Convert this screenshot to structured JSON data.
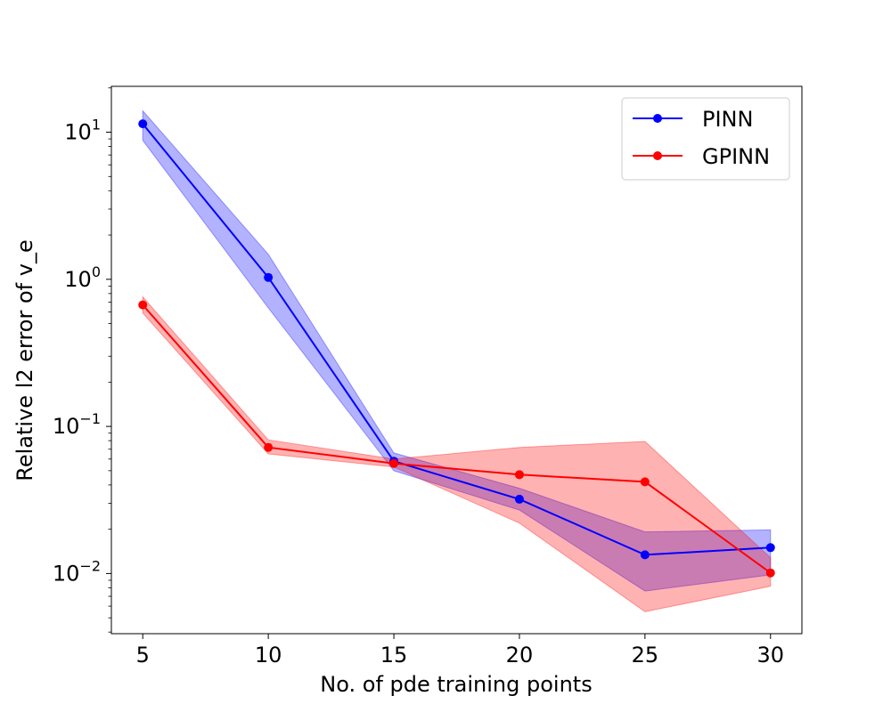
{
  "chart_data": {
    "type": "line",
    "title": "",
    "xlabel": "No. of pde training points",
    "ylabel": "Relative l2 error of v_e",
    "yscale": "log",
    "xlim": [
      3.75,
      31.25
    ],
    "ylim": [
      0.0039,
      20.5
    ],
    "grid": false,
    "legend_position": "upper right",
    "x": [
      5,
      10,
      15,
      20,
      25,
      30
    ],
    "xticks": [
      {
        "value": 5,
        "label": "5"
      },
      {
        "value": 10,
        "label": "10"
      },
      {
        "value": 15,
        "label": "15"
      },
      {
        "value": 20,
        "label": "20"
      },
      {
        "value": 25,
        "label": "25"
      },
      {
        "value": 30,
        "label": "30"
      }
    ],
    "yticks": [
      {
        "value": 10,
        "base": "10",
        "exp": "1"
      },
      {
        "value": 1,
        "base": "10",
        "exp": "0"
      },
      {
        "value": 0.1,
        "base": "10",
        "exp": "−1"
      },
      {
        "value": 0.01,
        "base": "10",
        "exp": "−2"
      }
    ],
    "series": [
      {
        "name": "PINN",
        "color": "#0000ff",
        "fill_color": "#0000ff",
        "values": [
          11.4,
          1.03,
          0.058,
          0.032,
          0.0134,
          0.015
        ],
        "upper": [
          14.0,
          1.48,
          0.066,
          0.038,
          0.0192,
          0.0198
        ],
        "lower": [
          8.8,
          0.64,
          0.05,
          0.027,
          0.0076,
          0.0098
        ]
      },
      {
        "name": "GPINN",
        "color": "#ff0000",
        "fill_color": "#ff0000",
        "values": [
          0.67,
          0.072,
          0.056,
          0.047,
          0.042,
          0.0101
        ],
        "upper": [
          0.76,
          0.081,
          0.06,
          0.072,
          0.079,
          0.0128
        ],
        "lower": [
          0.59,
          0.065,
          0.053,
          0.022,
          0.0055,
          0.0082
        ]
      }
    ]
  }
}
